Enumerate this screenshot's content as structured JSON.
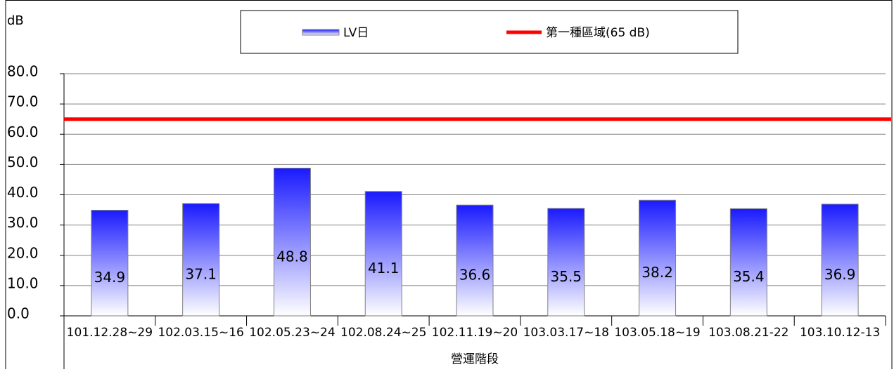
{
  "chart_data": {
    "type": "bar",
    "y_axis_label": "dB",
    "x_axis_label": "營運階段",
    "categories": [
      "101.12.28~29",
      "102.03.15~16",
      "102.05.23~24",
      "102.08.24~25",
      "102.11.19~20",
      "103.03.17~18",
      "103.05.18~19",
      "103.08.21-22",
      "103.10.12-13"
    ],
    "series": [
      {
        "name": "LV日",
        "color": "#1a1aff",
        "values": [
          34.9,
          37.1,
          48.8,
          41.1,
          36.6,
          35.5,
          38.2,
          35.4,
          36.9
        ]
      }
    ],
    "reference_line": {
      "name": "第一種區域(65 dB)",
      "value": 65,
      "color": "#ff0000"
    },
    "ylim": [
      0,
      80
    ],
    "yticks": [
      {
        "value": 0,
        "label": "0.0"
      },
      {
        "value": 10,
        "label": "10.0"
      },
      {
        "value": 20,
        "label": "20.0"
      },
      {
        "value": 30,
        "label": "30.0"
      },
      {
        "value": 40,
        "label": "40.0"
      },
      {
        "value": 50,
        "label": "50.0"
      },
      {
        "value": 60,
        "label": "60.0"
      },
      {
        "value": 70,
        "label": "70.0"
      },
      {
        "value": 80,
        "label": "80.0"
      }
    ],
    "grid": true
  }
}
